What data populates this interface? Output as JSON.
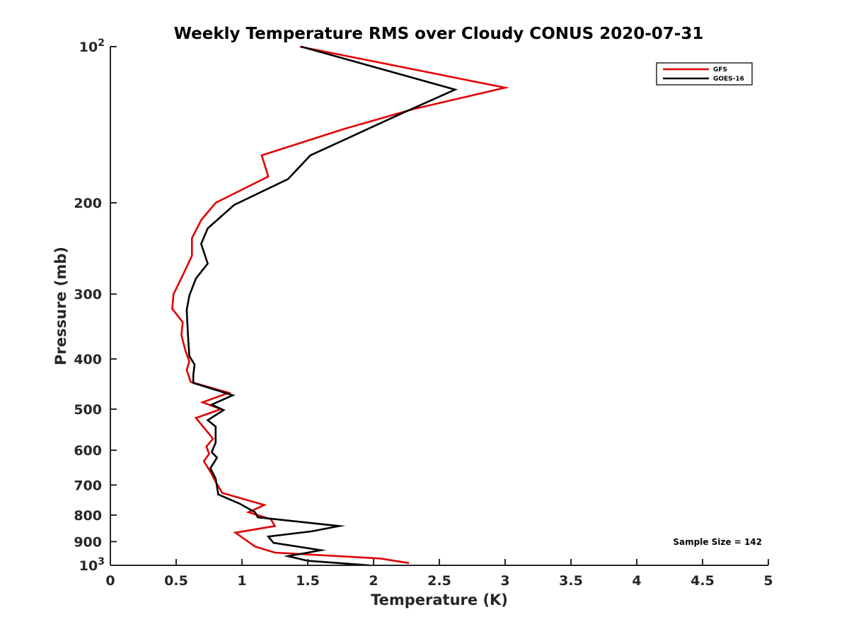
{
  "chart_data": {
    "type": "line",
    "title": "Weekly Temperature RMS over Cloudy CONUS 2020-07-31",
    "xlabel": "Temperature (K)",
    "ylabel": "Pressure (mb)",
    "xlim": [
      0,
      5
    ],
    "ylim": [
      100,
      1000
    ],
    "y_scale": "log",
    "y_reversed": true,
    "x_ticks": [
      0,
      0.5,
      1,
      1.5,
      2,
      2.5,
      3,
      3.5,
      4,
      4.5,
      5
    ],
    "x_tick_labels": [
      "0",
      "0.5",
      "1",
      "1.5",
      "2",
      "2.5",
      "3",
      "3.5",
      "4",
      "4.5",
      "5"
    ],
    "y_ticks": [
      100,
      200,
      300,
      400,
      500,
      600,
      700,
      800,
      900,
      1000
    ],
    "y_tick_labels": [
      {
        "base": "10",
        "exp": "2"
      },
      {
        "base": "200",
        "exp": ""
      },
      {
        "base": "300",
        "exp": ""
      },
      {
        "base": "400",
        "exp": ""
      },
      {
        "base": "500",
        "exp": ""
      },
      {
        "base": "600",
        "exp": ""
      },
      {
        "base": "700",
        "exp": ""
      },
      {
        "base": "800",
        "exp": ""
      },
      {
        "base": "900",
        "exp": ""
      },
      {
        "base": "1000",
        "exp": "",
        "display_base": "10",
        "display_exp": "3"
      }
    ],
    "grid": false,
    "legend_position": "top-right",
    "annotation": "Sample Size = 142",
    "series": [
      {
        "name": "GFS",
        "color": "#e00000",
        "points": [
          [
            1.44,
            100
          ],
          [
            3.0,
            120
          ],
          [
            2.3,
            132
          ],
          [
            1.78,
            144
          ],
          [
            1.15,
            162
          ],
          [
            1.2,
            178
          ],
          [
            0.8,
            200
          ],
          [
            0.69,
            216
          ],
          [
            0.62,
            234
          ],
          [
            0.62,
            253
          ],
          [
            0.55,
            276
          ],
          [
            0.48,
            300
          ],
          [
            0.47,
            320
          ],
          [
            0.55,
            340
          ],
          [
            0.54,
            360
          ],
          [
            0.57,
            385
          ],
          [
            0.6,
            405
          ],
          [
            0.58,
            420
          ],
          [
            0.61,
            443
          ],
          [
            0.9,
            465
          ],
          [
            0.7,
            485
          ],
          [
            0.84,
            500
          ],
          [
            0.65,
            520
          ],
          [
            0.73,
            550
          ],
          [
            0.78,
            570
          ],
          [
            0.73,
            590
          ],
          [
            0.75,
            610
          ],
          [
            0.71,
            630
          ],
          [
            0.76,
            660
          ],
          [
            0.8,
            690
          ],
          [
            0.85,
            725
          ],
          [
            1.17,
            765
          ],
          [
            1.05,
            790
          ],
          [
            1.22,
            815
          ],
          [
            1.25,
            840
          ],
          [
            0.95,
            865
          ],
          [
            1.02,
            890
          ],
          [
            1.1,
            920
          ],
          [
            1.25,
            945
          ],
          [
            2.05,
            970
          ],
          [
            2.27,
            990
          ]
        ]
      },
      {
        "name": "GOES-16",
        "color": "#000000",
        "points": [
          [
            1.45,
            100
          ],
          [
            2.62,
            121
          ],
          [
            2.2,
            135
          ],
          [
            1.52,
            162
          ],
          [
            1.35,
            180
          ],
          [
            0.94,
            202
          ],
          [
            0.74,
            224
          ],
          [
            0.69,
            240
          ],
          [
            0.74,
            262
          ],
          [
            0.65,
            280
          ],
          [
            0.6,
            302
          ],
          [
            0.58,
            322
          ],
          [
            0.59,
            360
          ],
          [
            0.6,
            395
          ],
          [
            0.64,
            410
          ],
          [
            0.63,
            430
          ],
          [
            0.63,
            445
          ],
          [
            0.93,
            470
          ],
          [
            0.77,
            490
          ],
          [
            0.86,
            502
          ],
          [
            0.74,
            525
          ],
          [
            0.8,
            540
          ],
          [
            0.8,
            580
          ],
          [
            0.77,
            605
          ],
          [
            0.81,
            620
          ],
          [
            0.76,
            650
          ],
          [
            0.8,
            680
          ],
          [
            0.82,
            730
          ],
          [
            0.98,
            760
          ],
          [
            1.1,
            790
          ],
          [
            1.12,
            808
          ],
          [
            1.74,
            840
          ],
          [
            1.53,
            860
          ],
          [
            1.2,
            880
          ],
          [
            1.24,
            905
          ],
          [
            1.6,
            935
          ],
          [
            1.35,
            960
          ],
          [
            1.5,
            980
          ],
          [
            1.97,
            1000
          ]
        ]
      }
    ]
  }
}
